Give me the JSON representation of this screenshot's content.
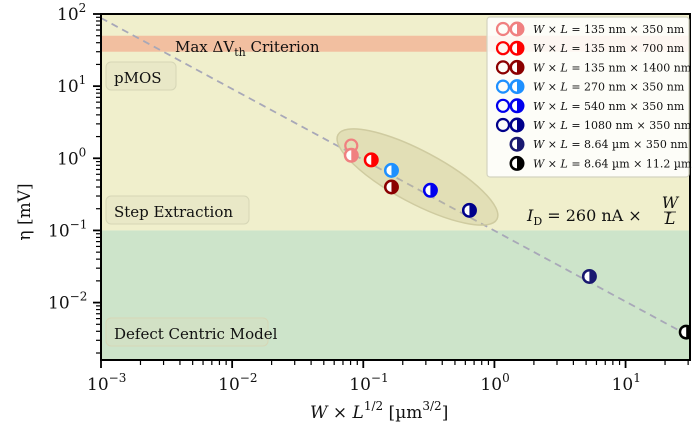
{
  "chart_data": {
    "type": "scatter",
    "title": "",
    "xlabel": "W × L^{1/2} [µm^{3/2}]",
    "xlabel_parts": {
      "main": "W × L",
      "sup": "1/2",
      "unit": " [µm",
      "unit_sup": "3/2",
      "close": "]"
    },
    "ylabel": "η [mV]",
    "xscale": "log",
    "yscale": "log",
    "xlim": [
      0.001,
      31
    ],
    "ylim": [
      0.0016,
      100
    ],
    "x_ticks": [
      {
        "value": 0.001,
        "base": "10",
        "exp": "−3"
      },
      {
        "value": 0.01,
        "base": "10",
        "exp": "−2"
      },
      {
        "value": 0.1,
        "base": "10",
        "exp": "−1"
      },
      {
        "value": 1,
        "base": "10",
        "exp": "0"
      },
      {
        "value": 10,
        "base": "10",
        "exp": "1"
      }
    ],
    "y_ticks": [
      {
        "value": 100,
        "base": "10",
        "exp": "2"
      },
      {
        "value": 10,
        "base": "10",
        "exp": "1"
      },
      {
        "value": 1,
        "base": "10",
        "exp": "0"
      },
      {
        "value": 0.1,
        "base": "10",
        "exp": "−1"
      },
      {
        "value": 0.01,
        "base": "10",
        "exp": "−2"
      }
    ],
    "grid": false,
    "regions": [
      {
        "name": "step-extraction",
        "label": "Step Extraction",
        "y_range": [
          0.1,
          100
        ],
        "color": "#f0efcc"
      },
      {
        "name": "defect-centric",
        "label": "Defect Centric Model",
        "y_range": [
          0.0016,
          0.1
        ],
        "color": "#cde4ca"
      },
      {
        "name": "max-dvth",
        "label_main": "Max ΔV",
        "label_sub": "th",
        "label_tail": " Criterion",
        "y_range": [
          30,
          50
        ],
        "color": "#f2bfa0"
      }
    ],
    "device_label": "pMOS",
    "annotation": {
      "lhs": "I",
      "lhs_sub": "D",
      "rhs": " = 260 nA × ",
      "frac_num": "W",
      "frac_den": "L"
    },
    "fit_line": {
      "x": [
        0.001,
        31
      ],
      "y": [
        88,
        0.0034
      ],
      "color": "#a8a8b8",
      "style": "dashed"
    },
    "highlight_ellipse": {
      "center": [
        0.25,
        0.55
      ],
      "color": "#d8d4a8"
    },
    "series": [
      {
        "name": "W × L = 135 nm × 350 nm",
        "color": "#f08080",
        "points": [
          {
            "x": 0.081,
            "y": 1.5,
            "marker": "open"
          },
          {
            "x": 0.081,
            "y": 1.1,
            "marker": "half"
          }
        ]
      },
      {
        "name": "W × L = 135 nm × 700 nm",
        "color": "#ff0000",
        "points": [
          {
            "x": 0.115,
            "y": 0.95,
            "marker": "half"
          }
        ]
      },
      {
        "name": "W × L = 135 nm × 1400 nm",
        "color": "#8b0000",
        "points": [
          {
            "x": 0.164,
            "y": 0.4,
            "marker": "half"
          }
        ]
      },
      {
        "name": "W × L = 270 nm × 350 nm",
        "color": "#1e90ff",
        "points": [
          {
            "x": 0.164,
            "y": 0.68,
            "marker": "half"
          }
        ]
      },
      {
        "name": "W × L = 540 nm × 350 nm",
        "color": "#0000ee",
        "points": [
          {
            "x": 0.325,
            "y": 0.36,
            "marker": "half"
          }
        ]
      },
      {
        "name": "W × L = 1080 nm × 350 nm",
        "color": "#00008b",
        "points": [
          {
            "x": 0.645,
            "y": 0.19,
            "marker": "half"
          }
        ]
      },
      {
        "name": "W × L = 8.64 µm × 350 nm",
        "color": "#191970",
        "points": [
          {
            "x": 5.3,
            "y": 0.023,
            "marker": "half"
          }
        ]
      },
      {
        "name": "W × L = 8.64 µm × 11.2 µm",
        "color": "#000000",
        "points": [
          {
            "x": 29,
            "y": 0.0039,
            "marker": "half"
          }
        ]
      }
    ],
    "legend": {
      "placement": "top-right",
      "entries": [
        {
          "a": "135",
          "au": "nm",
          "b": "350",
          "bu": "nm",
          "color": "#f08080",
          "open": true
        },
        {
          "a": "135",
          "au": "nm",
          "b": "700",
          "bu": "nm",
          "color": "#ff0000",
          "open": true
        },
        {
          "a": "135",
          "au": "nm",
          "b": "1400",
          "bu": "nm",
          "color": "#8b0000",
          "open": true
        },
        {
          "a": "270",
          "au": "nm",
          "b": "350",
          "bu": "nm",
          "color": "#1e90ff",
          "open": true
        },
        {
          "a": "540",
          "au": "nm",
          "b": "350",
          "bu": "nm",
          "color": "#0000ee",
          "open": true
        },
        {
          "a": "1080",
          "au": "nm",
          "b": "350",
          "bu": "nm",
          "color": "#00008b",
          "open": true
        },
        {
          "a": "8.64",
          "au": "µm",
          "b": "350",
          "bu": "nm",
          "color": "#191970",
          "open": false
        },
        {
          "a": "8.64",
          "au": "µm",
          "b": "11.2",
          "bu": "µm",
          "color": "#000000",
          "open": false
        }
      ],
      "prefix": "W × L = ",
      "times": " × "
    }
  }
}
